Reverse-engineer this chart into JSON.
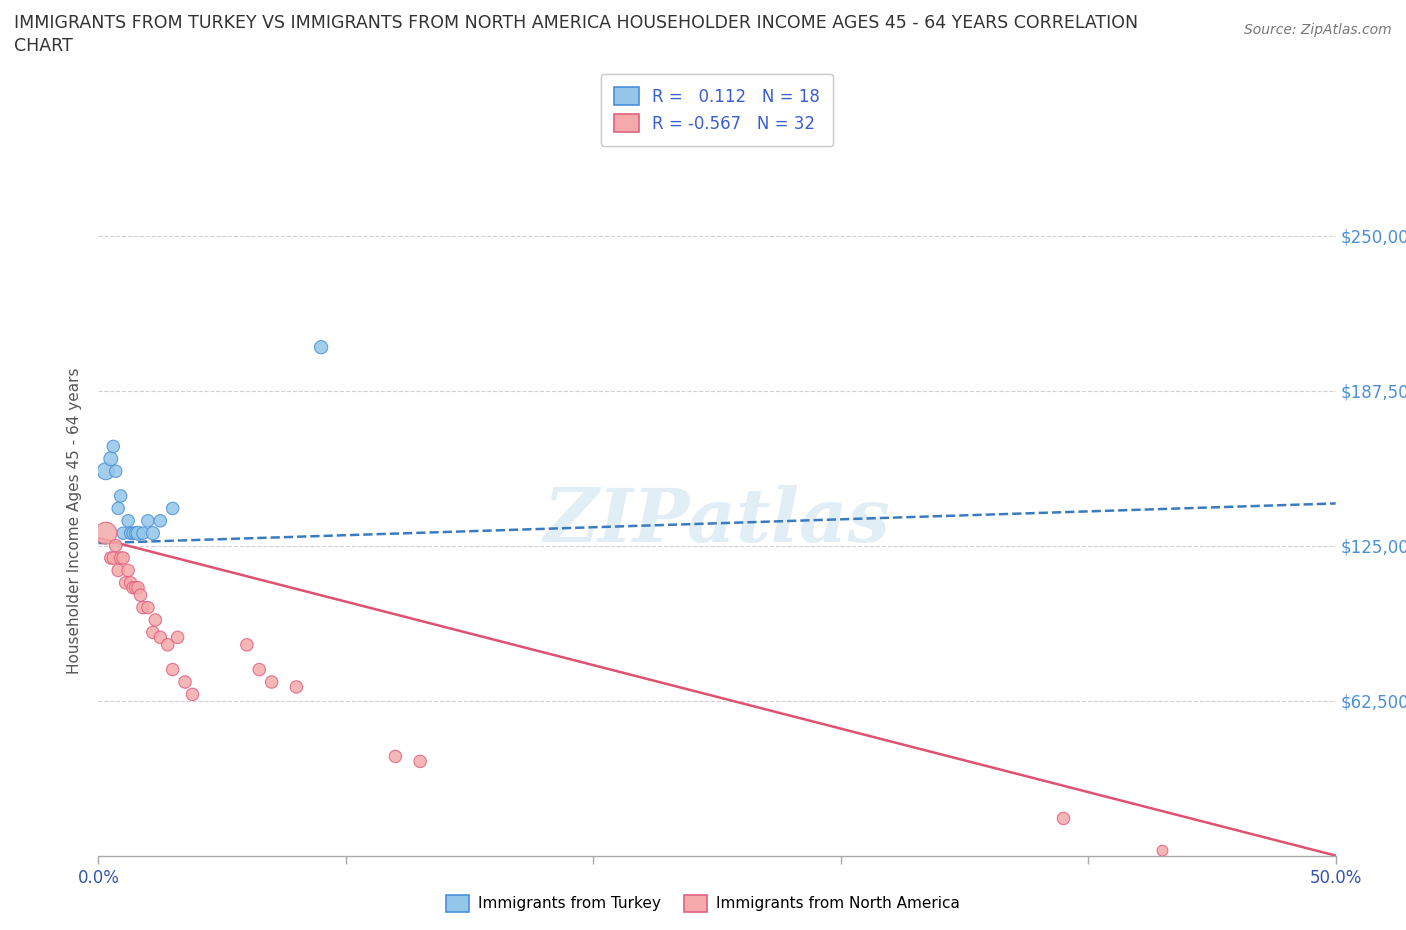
{
  "title_line1": "IMMIGRANTS FROM TURKEY VS IMMIGRANTS FROM NORTH AMERICA HOUSEHOLDER INCOME AGES 45 - 64 YEARS CORRELATION",
  "title_line2": "CHART",
  "source_text": "Source: ZipAtlas.com",
  "ylabel": "Householder Income Ages 45 - 64 years",
  "watermark": "ZIPatlas",
  "x_min": 0.0,
  "x_max": 0.5,
  "y_min": 0,
  "y_max": 270000,
  "y_ticks": [
    62500,
    125000,
    187500,
    250000
  ],
  "y_tick_labels": [
    "$62,500",
    "$125,000",
    "$187,500",
    "$250,000"
  ],
  "x_ticks": [
    0.0,
    0.1,
    0.2,
    0.3,
    0.4,
    0.5
  ],
  "x_tick_labels": [
    "0.0%",
    "",
    "",
    "",
    "",
    "50.0%"
  ],
  "turkey_color": "#93c6e8",
  "turkey_edge": "#4a90d9",
  "turkey_line_color": "#3a7bbf",
  "north_america_color": "#f4aaaa",
  "north_america_edge": "#e06080",
  "north_america_line_color": "#e05070",
  "turkey_R": 0.112,
  "turkey_N": 18,
  "north_america_R": -0.567,
  "north_america_N": 32,
  "turkey_scatter_x": [
    0.003,
    0.005,
    0.006,
    0.007,
    0.008,
    0.009,
    0.01,
    0.012,
    0.013,
    0.014,
    0.015,
    0.016,
    0.018,
    0.02,
    0.022,
    0.025,
    0.03,
    0.09
  ],
  "turkey_scatter_y": [
    155000,
    160000,
    165000,
    155000,
    140000,
    145000,
    130000,
    135000,
    130000,
    130000,
    130000,
    130000,
    130000,
    135000,
    130000,
    135000,
    140000,
    205000
  ],
  "turkey_scatter_size": [
    150,
    100,
    80,
    80,
    80,
    80,
    80,
    80,
    80,
    80,
    80,
    100,
    80,
    80,
    90,
    80,
    80,
    90
  ],
  "north_america_scatter_x": [
    0.003,
    0.005,
    0.006,
    0.007,
    0.008,
    0.009,
    0.01,
    0.011,
    0.012,
    0.013,
    0.014,
    0.015,
    0.016,
    0.017,
    0.018,
    0.02,
    0.022,
    0.023,
    0.025,
    0.028,
    0.03,
    0.032,
    0.035,
    0.038,
    0.06,
    0.065,
    0.07,
    0.08,
    0.12,
    0.13,
    0.39,
    0.43
  ],
  "north_america_scatter_y": [
    130000,
    120000,
    120000,
    125000,
    115000,
    120000,
    120000,
    110000,
    115000,
    110000,
    108000,
    108000,
    108000,
    105000,
    100000,
    100000,
    90000,
    95000,
    88000,
    85000,
    75000,
    88000,
    70000,
    65000,
    85000,
    75000,
    70000,
    68000,
    40000,
    38000,
    15000,
    2000
  ],
  "north_america_scatter_size": [
    250,
    80,
    80,
    80,
    80,
    80,
    80,
    80,
    80,
    80,
    80,
    80,
    80,
    80,
    80,
    80,
    80,
    80,
    80,
    80,
    80,
    80,
    80,
    80,
    80,
    80,
    80,
    80,
    80,
    80,
    80,
    60
  ],
  "turkey_line_x0": 0.0,
  "turkey_line_x1": 0.5,
  "turkey_line_y0": 126000,
  "turkey_line_y1": 142000,
  "north_america_line_x0": 0.0,
  "north_america_line_x1": 0.5,
  "north_america_line_y0": 128000,
  "north_america_line_y1": 0,
  "grid_color": "#cccccc",
  "background_color": "#ffffff"
}
